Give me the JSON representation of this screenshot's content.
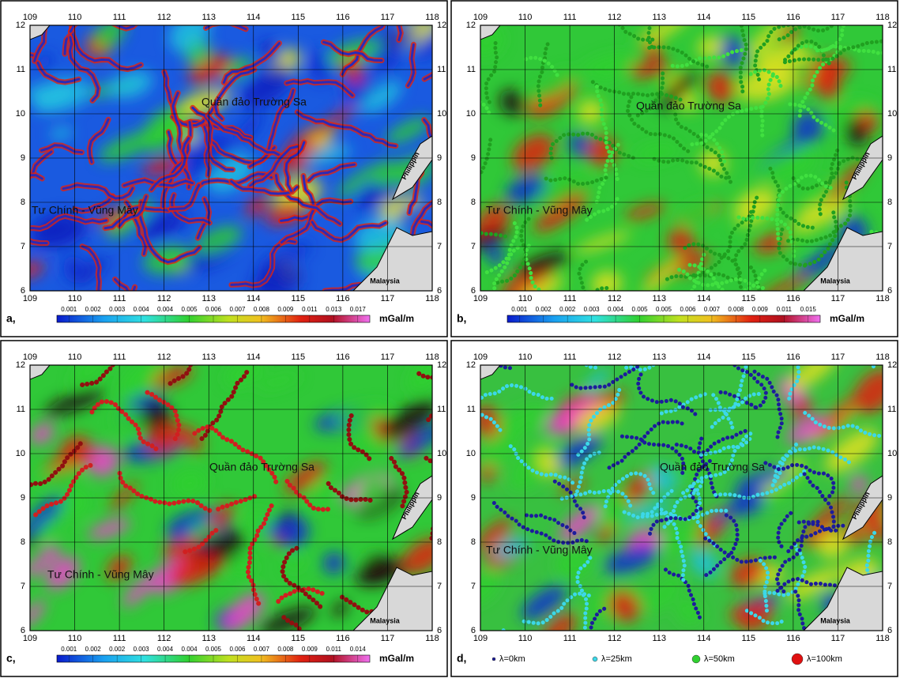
{
  "axes": {
    "lon": [
      "109",
      "110",
      "111",
      "112",
      "113",
      "114",
      "115",
      "116",
      "117",
      "118"
    ],
    "lat": [
      "12",
      "11",
      "10",
      "9",
      "8",
      "7",
      "6"
    ]
  },
  "places": {
    "islands": "Quần đảo Trường Sa",
    "bank": "Tư Chính - Vũng Mây",
    "philippines": "Philippin",
    "malaysia": "Malaysia"
  },
  "panels": [
    {
      "label": "a,",
      "colorbar": {
        "labels": [
          "0.001",
          "0.002",
          "0.003",
          "0.004",
          "0.004",
          "0.005",
          "0.006",
          "0.007",
          "0.008",
          "0.009",
          "0.011",
          "0.013",
          "0.017"
        ],
        "unit": "mGal/m"
      }
    },
    {
      "label": "b,",
      "colorbar": {
        "labels": [
          "0.001",
          "0.002",
          "0.002",
          "0.003",
          "0.004",
          "0.005",
          "0.005",
          "0.006",
          "0.007",
          "0.008",
          "0.009",
          "0.011",
          "0.015"
        ],
        "unit": "mGal/m"
      }
    },
    {
      "label": "c,",
      "colorbar": {
        "labels": [
          "0.001",
          "0.002",
          "0.002",
          "0.003",
          "0.004",
          "0.004",
          "0.005",
          "0.006",
          "0.007",
          "0.008",
          "0.009",
          "0.011",
          "0.014"
        ],
        "unit": "mGal/m"
      }
    },
    {
      "label": "d,",
      "legend": [
        {
          "label": "λ=0km",
          "color": "#1c1c9c"
        },
        {
          "label": "λ=25km",
          "color": "#3cd8e8"
        },
        {
          "label": "λ=50km",
          "color": "#30d030"
        },
        {
          "label": "λ=100km",
          "color": "#e01010"
        }
      ]
    }
  ]
}
